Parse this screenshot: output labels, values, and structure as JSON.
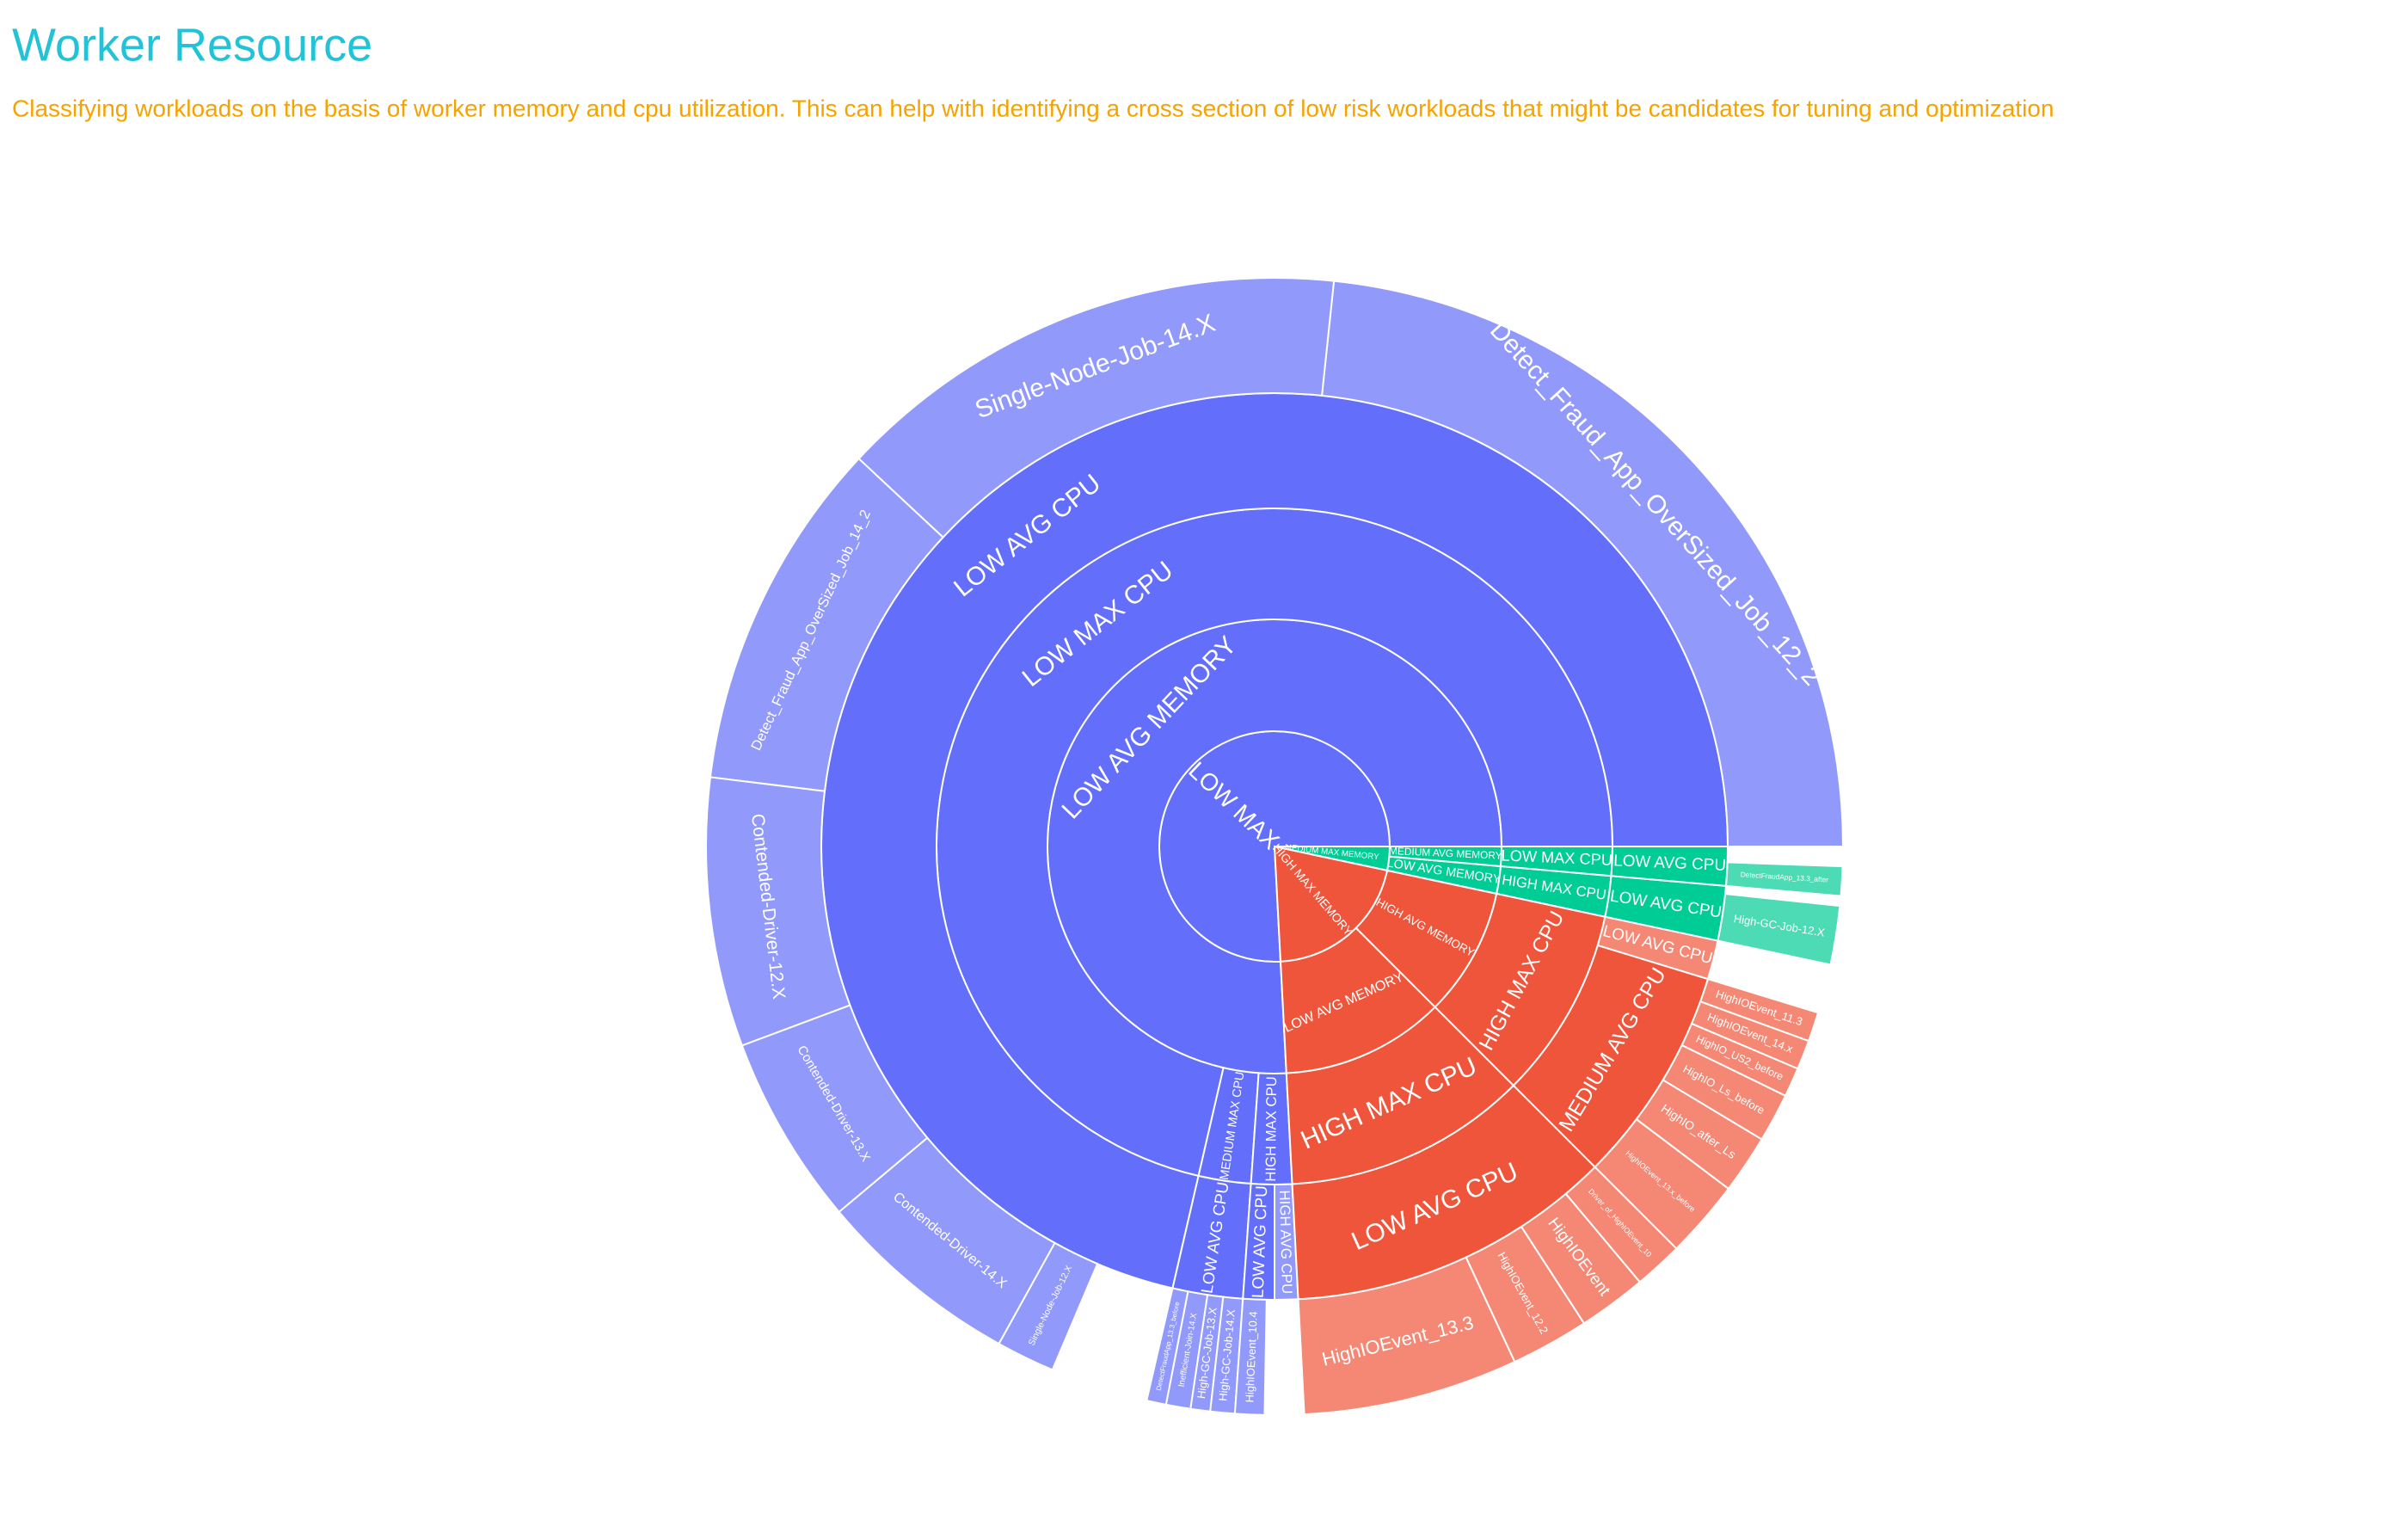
{
  "chart_data": {
    "type": "sunburst",
    "title": "Worker Resource",
    "subtitle": "Classifying workloads on the basis of worker memory and cpu utilization. This can help with identifying a cross section of low risk workloads that might be candidates for tuning and optimization",
    "nodes": [
      {
        "label": "LOW MAX MEMORY",
        "value": 273,
        "color": "#636efa",
        "children": [
          {
            "label": "LOW AVG MEMORY",
            "value": 273,
            "children": [
              {
                "label": "LOW MAX CPU",
                "value": 257,
                "children": [
                  {
                    "label": "LOW AVG CPU",
                    "value": 257,
                    "children": [
                      {
                        "label": "Detect_Fraud_App_OverSized_Job_12_2",
                        "value": 84
                      },
                      {
                        "label": "Single-Node-Job-14.X",
                        "value": 53
                      },
                      {
                        "label": "Detect_Fraud_App_OverSized_Job_14_2",
                        "value": 36
                      },
                      {
                        "label": "Contended-Driver-12.X",
                        "value": 27.5
                      },
                      {
                        "label": "Contended-Driver-13.X",
                        "value": 19.5
                      },
                      {
                        "label": "Contended-Driver-14.X",
                        "value": 21
                      },
                      {
                        "label": "Single-Node-Job-12.X",
                        "value": 6
                      }
                    ]
                  }
                ]
              },
              {
                "label": "MEDIUM MAX CPU",
                "value": 9,
                "children": [
                  {
                    "label": "LOW AVG CPU",
                    "value": 9,
                    "children": [
                      {
                        "label": "DetectFraudApp_13.3_before",
                        "value": 2
                      },
                      {
                        "label": "Inefficient-Join-14.X",
                        "value": 2.5
                      },
                      {
                        "label": "High-GC-Job-13.X",
                        "value": 2
                      },
                      {
                        "label": "High-GC-Job-14.X",
                        "value": 2.5
                      }
                    ]
                  }
                ]
              },
              {
                "label": "HIGH MAX CPU",
                "value": 7,
                "children": [
                  {
                    "label": "LOW AVG CPU",
                    "value": 4,
                    "children": [
                      {
                        "label": "HighIOEvent_10.4",
                        "value": 3
                      }
                    ]
                  },
                  {
                    "label": "HIGH AVG CPU",
                    "value": 3
                  }
                ]
              }
            ]
          }
        ]
      },
      {
        "label": "HIGH MAX MEMORY",
        "value": 75,
        "color": "#ef553b",
        "children": [
          {
            "label": "LOW AVG MEMORY",
            "value": 42,
            "children": [
              {
                "label": "HIGH MAX CPU",
                "value": 42,
                "children": [
                  {
                    "label": "LOW AVG CPU",
                    "value": 42,
                    "children": [
                      {
                        "label": "HighIOEvent_13.3",
                        "value": 22
                      },
                      {
                        "label": "HighIOEvent_12.2",
                        "value": 8
                      },
                      {
                        "label": "HighIOEvent",
                        "value": 7
                      },
                      {
                        "label": "Driver_of_HighIOEvent_10",
                        "value": 5
                      }
                    ]
                  }
                ]
              }
            ]
          },
          {
            "label": "HIGH AVG MEMORY",
            "value": 33,
            "children": [
              {
                "label": "HIGH MAX CPU",
                "value": 33,
                "children": [
                  {
                    "label": "MEDIUM AVG CPU",
                    "value": 28,
                    "children": [
                      {
                        "label": "HighIOEvent_13.x_before",
                        "value": 8
                      },
                      {
                        "label": "HighIO_after_Ls",
                        "value": 6
                      },
                      {
                        "label": "HighIO_Ls_before",
                        "value": 5
                      },
                      {
                        "label": "HighIO_US2_before",
                        "value": 3
                      },
                      {
                        "label": "HighIOEvent_14.x",
                        "value": 3
                      },
                      {
                        "label": "HighIOEvent_11.3",
                        "value": 3
                      }
                    ]
                  },
                  {
                    "label": "LOW AVG CPU",
                    "value": 5
                  }
                ]
              }
            ]
          }
        ]
      },
      {
        "label": "MEDIUM MAX MEMORY",
        "value": 12,
        "color": "#00cc96",
        "children": [
          {
            "label": "LOW AVG MEMORY",
            "value": 7,
            "children": [
              {
                "label": "HIGH MAX CPU",
                "value": 7,
                "children": [
                  {
                    "label": "LOW AVG CPU",
                    "value": 7,
                    "children": [
                      {
                        "label": "High-GC-Job-12.X",
                        "value": 6
                      }
                    ]
                  }
                ]
              }
            ]
          },
          {
            "label": "MEDIUM AVG MEMORY",
            "value": 5,
            "children": [
              {
                "label": "LOW MAX CPU",
                "value": 5,
                "children": [
                  {
                    "label": "LOW AVG CPU",
                    "value": 5,
                    "children": [
                      {
                        "label": "DetectFraudApp_13.3_after",
                        "value": 3
                      }
                    ]
                  }
                ]
              }
            ]
          }
        ]
      }
    ]
  }
}
